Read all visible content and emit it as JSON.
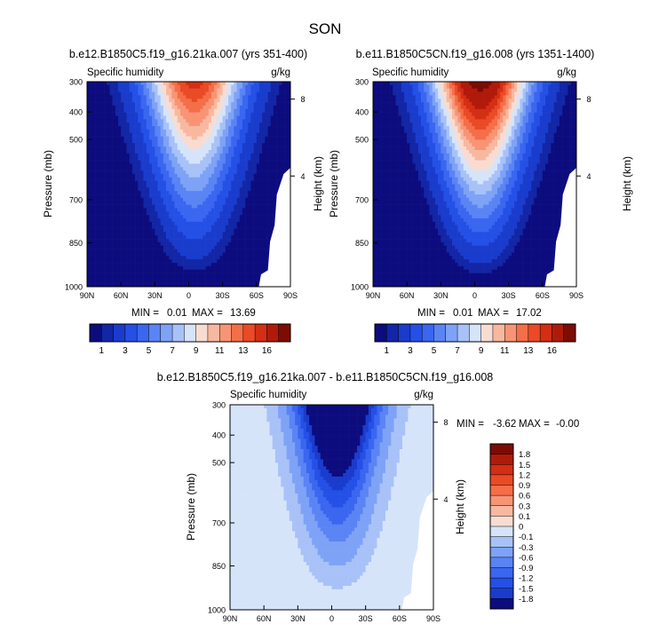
{
  "figure": {
    "title": "SON"
  },
  "chart_data": [
    {
      "type": "heatmap",
      "title": "b.e12.B1850C5.f19_g16.21ka.007 (yrs 351-400)",
      "left_label": "Specific humidity",
      "right_label": "g/kg",
      "ylabel": "Pressure (mb)",
      "ylabel_right": "Height (km)",
      "xticks": [
        "90N",
        "60N",
        "30N",
        "0",
        "30S",
        "60S",
        "90S"
      ],
      "yticks": [
        "300",
        "400",
        "500",
        "700",
        "850",
        "1000"
      ],
      "height_ticks": [
        "8",
        "4"
      ],
      "min_label": "MIN =",
      "min_value": "0.01",
      "max_label": "MAX =",
      "max_value": "13.69",
      "peak_value": 13.69,
      "peak_lat": -5,
      "colorbar_orientation": "horizontal",
      "colorbar_labels": [
        "1",
        "3",
        "5",
        "7",
        "9",
        "11",
        "13",
        "16"
      ],
      "colorbar_colors": [
        "#0c0c7e",
        "#1226a6",
        "#1a3ccc",
        "#2450e6",
        "#3a66f0",
        "#5a84f4",
        "#7ea2f6",
        "#a8c2f8",
        "#d6e4fa",
        "#f8dcd2",
        "#f8b8a0",
        "#f89474",
        "#f46e48",
        "#ea4a26",
        "#d42e14",
        "#b01a0a",
        "#7c0c04"
      ]
    },
    {
      "type": "heatmap",
      "title": "b.e11.B1850C5CN.f19_g16.008 (yrs 1351-1400)",
      "left_label": "Specific humidity",
      "right_label": "g/kg",
      "ylabel": "Pressure (mb)",
      "ylabel_right": "Height (km)",
      "xticks": [
        "90N",
        "60N",
        "30N",
        "0",
        "30S",
        "60S",
        "90S"
      ],
      "yticks": [
        "300",
        "400",
        "500",
        "700",
        "850",
        "1000"
      ],
      "height_ticks": [
        "8",
        "4"
      ],
      "min_label": "MIN =",
      "min_value": "0.01",
      "max_label": "MAX =",
      "max_value": "17.02",
      "peak_value": 17.02,
      "peak_lat": -5,
      "colorbar_orientation": "horizontal",
      "colorbar_labels": [
        "1",
        "3",
        "5",
        "7",
        "9",
        "11",
        "13",
        "16"
      ],
      "colorbar_colors": [
        "#0c0c7e",
        "#1226a6",
        "#1a3ccc",
        "#2450e6",
        "#3a66f0",
        "#5a84f4",
        "#7ea2f6",
        "#a8c2f8",
        "#d6e4fa",
        "#f8dcd2",
        "#f8b8a0",
        "#f89474",
        "#f46e48",
        "#ea4a26",
        "#d42e14",
        "#b01a0a",
        "#7c0c04"
      ]
    },
    {
      "type": "heatmap",
      "title": "b.e12.B1850C5.f19_g16.21ka.007 - b.e11.B1850C5CN.f19_g16.008",
      "left_label": "Specific humidity",
      "right_label": "g/kg",
      "ylabel": "Pressure (mb)",
      "ylabel_right": "Height (km)",
      "xticks": [
        "90N",
        "60N",
        "30N",
        "0",
        "30S",
        "60S",
        "90S"
      ],
      "yticks": [
        "300",
        "400",
        "500",
        "700",
        "850",
        "1000"
      ],
      "height_ticks": [
        "8",
        "4"
      ],
      "min_label": "MIN =",
      "min_value": "-3.62",
      "max_label": "MAX =",
      "max_value": "-0.00",
      "colorbar_orientation": "vertical",
      "colorbar_labels": [
        "1.8",
        "1.5",
        "1.2",
        "0.9",
        "0.6",
        "0.3",
        "0.1",
        "0",
        "-0.1",
        "-0.3",
        "-0.6",
        "-0.9",
        "-1.2",
        "-1.5",
        "-1.8"
      ],
      "colorbar_colors": [
        "#7c0c04",
        "#b01a0a",
        "#d42e14",
        "#ea4a26",
        "#f46e48",
        "#f89474",
        "#f8b8a0",
        "#f8dcd2",
        "#d6e4fa",
        "#a8c2f8",
        "#7ea2f6",
        "#5a84f4",
        "#3a66f0",
        "#2450e6",
        "#1a3ccc",
        "#0c0c7e"
      ]
    }
  ]
}
